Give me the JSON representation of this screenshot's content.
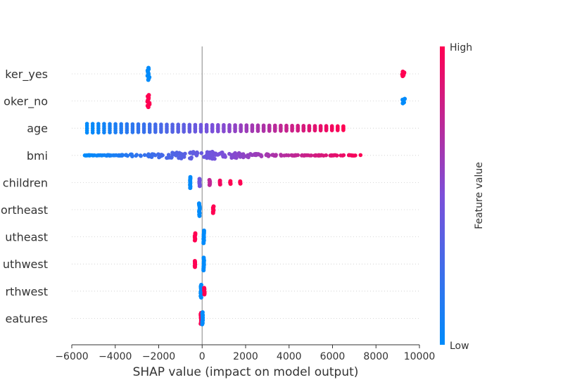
{
  "chart_data": {
    "type": "scatter",
    "subtype": "shap-beeswarm",
    "title": "",
    "xlabel": "SHAP value (impact on model output)",
    "ylabel": "",
    "xlim": [
      -6000,
      10000
    ],
    "x_ticks": [
      -6000,
      -4000,
      -2000,
      0,
      2000,
      4000,
      6000,
      8000,
      10000
    ],
    "x_tick_labels": [
      "−6000",
      "−4000",
      "−2000",
      "0",
      "2000",
      "4000",
      "6000",
      "8000",
      "10000"
    ],
    "grid": false,
    "zero_line": true,
    "colorbar": {
      "label": "Feature value",
      "high_label": "High",
      "low_label": "Low",
      "low_color": "#008bfb",
      "mid_color": "#7c4fd9",
      "high_color": "#ff0052",
      "placement": "right"
    },
    "features": [
      {
        "label": "ker_yes",
        "clusters": [
          {
            "x_min": -2520,
            "x_max": -2420,
            "spread": 0.22,
            "color": 0.0,
            "n": 10
          },
          {
            "x_min": 9200,
            "x_max": 9330,
            "spread": 0.08,
            "color": 1.0,
            "n": 6
          }
        ]
      },
      {
        "label": "oker_no",
        "clusters": [
          {
            "x_min": -2520,
            "x_max": -2420,
            "spread": 0.22,
            "color": 1.0,
            "n": 10
          },
          {
            "x_min": 9200,
            "x_max": 9330,
            "spread": 0.08,
            "color": 0.0,
            "n": 6
          }
        ]
      },
      {
        "label": "age",
        "clusters": [
          {
            "x_min": -5300,
            "x_max": 6500,
            "spread": 0.18,
            "color_from": 0.0,
            "color_to": 1.0,
            "n": 46,
            "columns": true
          }
        ]
      },
      {
        "label": "bmi",
        "clusters": [
          {
            "x_min": -5400,
            "x_max": 7400,
            "spread": 0.15,
            "color_from": 0.0,
            "color_to": 1.0,
            "n": 260,
            "dense_center": 0,
            "columns": false
          }
        ]
      },
      {
        "label": "children",
        "clusters": [
          {
            "x_min": -560,
            "x_max": -540,
            "spread": 0.2,
            "color": 0.0,
            "n": 8
          },
          {
            "x_min": -130,
            "x_max": -100,
            "spread": 0.13,
            "color": 0.45,
            "n": 6
          },
          {
            "x_min": 330,
            "x_max": 360,
            "spread": 0.09,
            "color": 0.75,
            "n": 5
          },
          {
            "x_min": 800,
            "x_max": 830,
            "spread": 0.07,
            "color": 0.95,
            "n": 4
          },
          {
            "x_min": 1280,
            "x_max": 1310,
            "spread": 0.05,
            "color": 1.0,
            "n": 3
          },
          {
            "x_min": 1730,
            "x_max": 1760,
            "spread": 0.04,
            "color": 1.0,
            "n": 3
          }
        ]
      },
      {
        "label": "ortheast",
        "clusters": [
          {
            "x_min": -140,
            "x_max": -110,
            "spread": 0.23,
            "color": 0.0,
            "n": 10
          },
          {
            "x_min": 500,
            "x_max": 530,
            "spread": 0.12,
            "color": 1.0,
            "n": 6
          }
        ]
      },
      {
        "label": "utheast",
        "clusters": [
          {
            "x_min": 60,
            "x_max": 90,
            "spread": 0.23,
            "color": 0.0,
            "n": 10
          },
          {
            "x_min": -340,
            "x_max": -310,
            "spread": 0.13,
            "color": 1.0,
            "n": 6
          }
        ]
      },
      {
        "label": "uthwest",
        "clusters": [
          {
            "x_min": 60,
            "x_max": 90,
            "spread": 0.23,
            "color": 0.0,
            "n": 10
          },
          {
            "x_min": -340,
            "x_max": -310,
            "spread": 0.11,
            "color": 1.0,
            "n": 6
          }
        ]
      },
      {
        "label": "rthwest",
        "clusters": [
          {
            "x_min": -70,
            "x_max": -40,
            "spread": 0.23,
            "color": 0.0,
            "n": 10
          },
          {
            "x_min": 90,
            "x_max": 120,
            "spread": 0.12,
            "color": 1.0,
            "n": 6
          }
        ]
      },
      {
        "label": "eatures",
        "clusters": [
          {
            "x_min": -70,
            "x_max": -40,
            "spread": 0.2,
            "color": 1.0,
            "n": 10
          },
          {
            "x_min": 0,
            "x_max": 30,
            "spread": 0.22,
            "color": 0.0,
            "n": 10
          }
        ]
      }
    ]
  }
}
